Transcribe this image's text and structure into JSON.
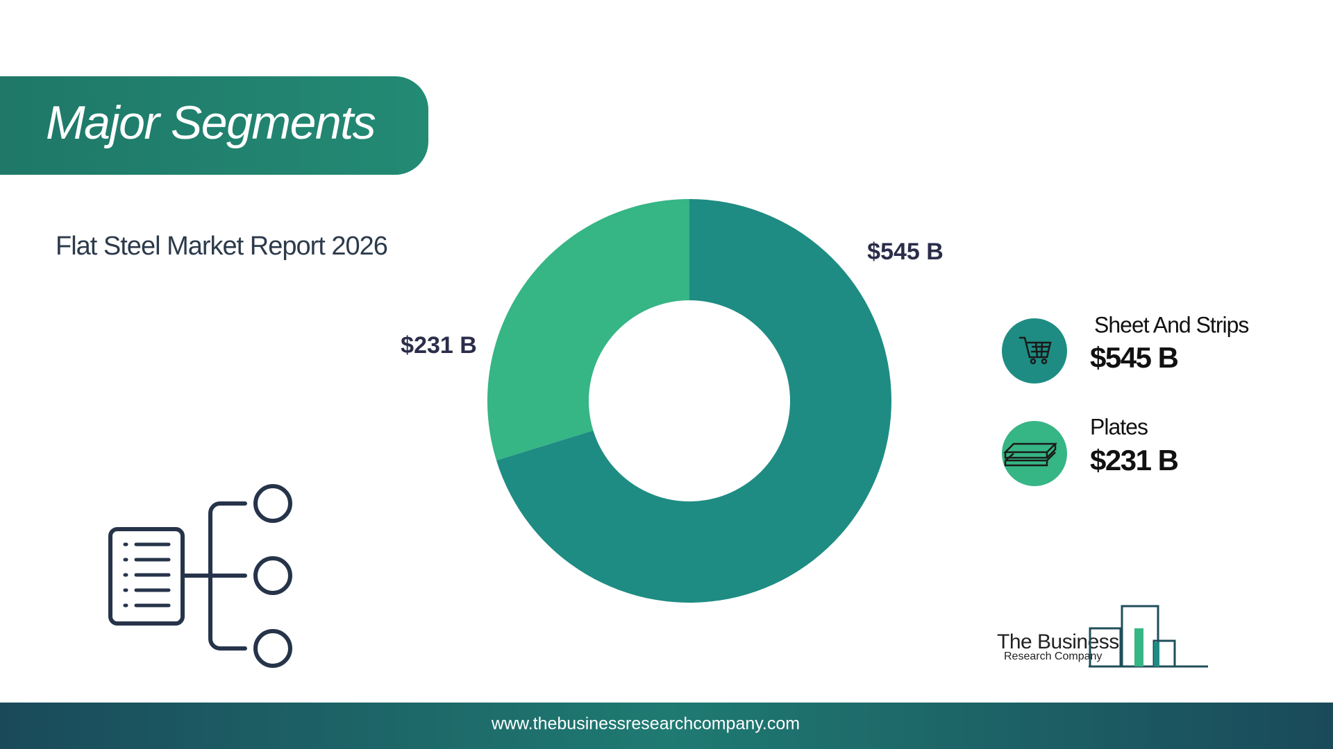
{
  "header": {
    "title": "Major Segments"
  },
  "chart_data": {
    "type": "donut",
    "subtitle": "Flat Steel Market Report 2026",
    "categories": [
      "Sheet And Strips",
      "Plates"
    ],
    "values": [
      545,
      231
    ],
    "value_labels": [
      "$545 B",
      "$231 B"
    ],
    "colors": [
      "#1e8c83",
      "#36b585"
    ]
  },
  "logo": {
    "line1": "The Business",
    "line2": "Research Company"
  },
  "footer": {
    "url": "www.thebusinessresearchcompany.com"
  }
}
